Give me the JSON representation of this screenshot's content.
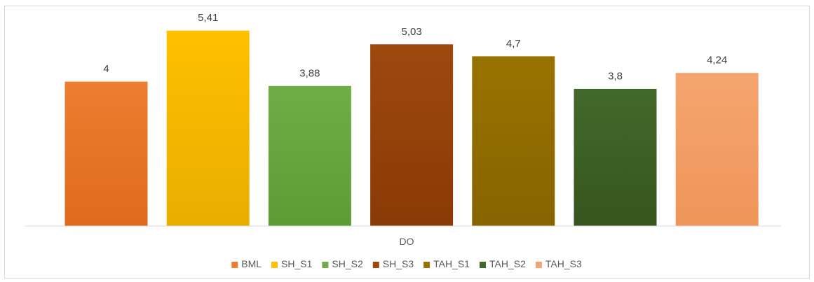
{
  "chart_data": {
    "type": "bar",
    "categories": [
      "DO"
    ],
    "series": [
      {
        "name": "BML",
        "value": 4,
        "label": "4",
        "color": "#ed7d31",
        "color_dark": "#e06a1b"
      },
      {
        "name": "SH_S1",
        "value": 5.41,
        "label": "5,41",
        "color": "#ffc000",
        "color_dark": "#e8ad00"
      },
      {
        "name": "SH_S2",
        "value": 3.88,
        "label": "3,88",
        "color": "#70ad47",
        "color_dark": "#5e9a36"
      },
      {
        "name": "SH_S3",
        "value": 5.03,
        "label": "5,03",
        "color": "#9e480e",
        "color_dark": "#8a3a06"
      },
      {
        "name": "TAH_S1",
        "value": 4.7,
        "label": "4,7",
        "color": "#997300",
        "color_dark": "#866400"
      },
      {
        "name": "TAH_S2",
        "value": 3.8,
        "label": "3,8",
        "color": "#43682b",
        "color_dark": "#35561f"
      },
      {
        "name": "TAH_S3",
        "value": 4.24,
        "label": "4,24",
        "color": "#f4a56e",
        "color_dark": "#ef955a"
      }
    ],
    "ylim": [
      0,
      5.8
    ],
    "grid": false,
    "legend_position": "bottom",
    "title": "",
    "xlabel": "",
    "ylabel": ""
  }
}
